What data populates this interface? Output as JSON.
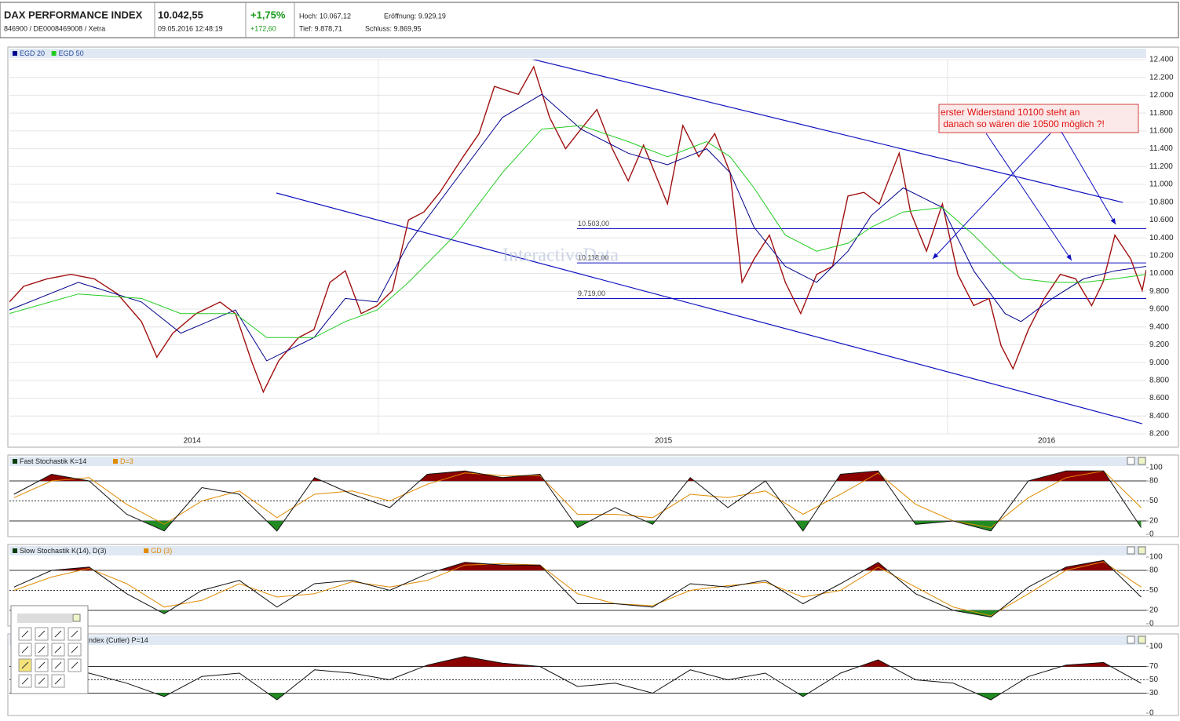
{
  "header": {
    "name": "DAX PERFORMANCE INDEX",
    "ids": "846900 / DE0008469008 / Xetra",
    "last": "10.042,55",
    "time": "09.05.2016 12:48:19",
    "change_pct": "+1,75%",
    "change_abs": "+172,60",
    "high": "Hoch: 10.067,12",
    "open": "Eröffnung: 9.929,19",
    "low": "Tief: 9.878,71",
    "close": "Schluss: 9.869,95"
  },
  "chart_data": [
    {
      "type": "line",
      "watermark": "InteractiveData",
      "annotation": [
        "erster Widerstand 10100 steht an",
        " danach so wären die 10500 möglich ?!"
      ],
      "xlim": [
        2014.352,
        2016.349
      ],
      "xticks": [
        {
          "value": 2014.673,
          "label": "2014"
        },
        {
          "value": 2015.501,
          "label": "2015"
        },
        {
          "value": 2016.174,
          "label": "2016"
        }
      ],
      "year_breaks": [
        2015,
        2016
      ],
      "ylim": [
        8200,
        12400
      ],
      "yticks": [
        {
          "value": 8200,
          "label": "8.200"
        },
        {
          "value": 8400,
          "label": "8.400"
        },
        {
          "value": 8600,
          "label": "8.600"
        },
        {
          "value": 8800,
          "label": "8.800"
        },
        {
          "value": 9000,
          "label": "9.000"
        },
        {
          "value": 9200,
          "label": "9.200"
        },
        {
          "value": 9400,
          "label": "9.400"
        },
        {
          "value": 9600,
          "label": "9.600"
        },
        {
          "value": 9800,
          "label": "9.800"
        },
        {
          "value": 10000,
          "label": "10.000"
        },
        {
          "value": 10200,
          "label": "10.200"
        },
        {
          "value": 10400,
          "label": "10.400"
        },
        {
          "value": 10600,
          "label": "10.600"
        },
        {
          "value": 10800,
          "label": "10.800"
        },
        {
          "value": 11000,
          "label": "11.000"
        },
        {
          "value": 11200,
          "label": "11.200"
        },
        {
          "value": 11400,
          "label": "11.400"
        },
        {
          "value": 11600,
          "label": "11.600"
        },
        {
          "value": 11800,
          "label": "11.800"
        },
        {
          "value": 12000,
          "label": "12.000"
        },
        {
          "value": 12200,
          "label": "12.200"
        },
        {
          "value": 12400,
          "label": "12.400"
        }
      ],
      "grid": true,
      "hlines": [
        {
          "value": 10503,
          "label": "10.503,00"
        },
        {
          "value": 10118,
          "label": "10.118,00"
        },
        {
          "value": 9719,
          "label": "9.719,00"
        }
      ],
      "trendlines": [
        {
          "x": [
            2015.262,
            2016.308
          ],
          "y": [
            12418,
            10797
          ]
        },
        {
          "x": [
            2014.821,
            2016.342
          ],
          "y": [
            10903,
            8314
          ]
        }
      ],
      "series": [
        {
          "color": "#a01010",
          "x": [
            2014.352,
            2014.377,
            2014.418,
            2014.46,
            2014.501,
            2014.542,
            2014.584,
            2014.611,
            2014.639,
            2014.68,
            2014.722,
            2014.749,
            2014.777,
            2014.798,
            2014.825,
            2014.86,
            2014.887,
            2014.915,
            2014.942,
            2014.97,
            2014.998,
            2015.025,
            2015.053,
            2015.08,
            2015.108,
            2015.149,
            2015.177,
            2015.204,
            2015.246,
            2015.273,
            2015.301,
            2015.329,
            2015.356,
            2015.384,
            2015.411,
            2015.439,
            2015.466,
            2015.508,
            2015.535,
            2015.563,
            2015.591,
            2015.618,
            2015.639,
            2015.66,
            2015.687,
            2015.715,
            2015.742,
            2015.77,
            2015.798,
            2015.825,
            2015.853,
            2015.88,
            2015.915,
            2015.935,
            2015.963,
            2015.991,
            2016.018,
            2016.046,
            2016.073,
            2016.094,
            2016.115,
            2016.142,
            2016.17,
            2016.198,
            2016.225,
            2016.253,
            2016.273,
            2016.294,
            2016.322,
            2016.342,
            2016.349
          ],
          "values": [
            9680,
            9855,
            9940,
            9990,
            9940,
            9770,
            9460,
            9060,
            9330,
            9550,
            9680,
            9550,
            9020,
            8670,
            9020,
            9280,
            9370,
            9900,
            10030,
            9550,
            9640,
            9810,
            10600,
            10690,
            10910,
            11310,
            11570,
            12100,
            12010,
            12320,
            11750,
            11400,
            11620,
            11840,
            11400,
            11040,
            11440,
            10780,
            11660,
            11310,
            11570,
            11130,
            9900,
            10160,
            10430,
            9900,
            9550,
            9990,
            10080,
            10870,
            10910,
            10780,
            11350,
            10690,
            10250,
            10780,
            9990,
            9640,
            9720,
            9190,
            8930,
            9370,
            9720,
            9990,
            9940,
            9640,
            9900,
            10430,
            10160,
            9810,
            10040
          ]
        },
        {
          "name": "EGD 20",
          "color": "#00008b",
          "x": [
            2014.352,
            2014.473,
            2014.584,
            2014.653,
            2014.749,
            2014.804,
            2014.887,
            2014.942,
            2014.998,
            2015.053,
            2015.135,
            2015.218,
            2015.287,
            2015.356,
            2015.439,
            2015.508,
            2015.577,
            2015.618,
            2015.66,
            2015.715,
            2015.77,
            2015.825,
            2015.866,
            2015.922,
            2015.991,
            2016.046,
            2016.101,
            2016.129,
            2016.184,
            2016.239,
            2016.294,
            2016.349
          ],
          "values": [
            9590,
            9900,
            9680,
            9330,
            9590,
            9020,
            9280,
            9720,
            9680,
            10340,
            11040,
            11750,
            12010,
            11620,
            11350,
            11220,
            11400,
            11130,
            10520,
            10080,
            9900,
            10250,
            10650,
            10960,
            10740,
            10030,
            9550,
            9460,
            9720,
            9940,
            10030,
            10080
          ]
        },
        {
          "name": "EGD 50",
          "color": "#22cc22",
          "x": [
            2014.352,
            2014.473,
            2014.584,
            2014.653,
            2014.749,
            2014.804,
            2014.887,
            2014.942,
            2014.998,
            2015.053,
            2015.135,
            2015.218,
            2015.287,
            2015.356,
            2015.439,
            2015.508,
            2015.577,
            2015.618,
            2015.66,
            2015.715,
            2015.77,
            2015.825,
            2015.866,
            2015.922,
            2015.991,
            2016.046,
            2016.101,
            2016.129,
            2016.184,
            2016.239,
            2016.294,
            2016.349
          ],
          "values": [
            9550,
            9770,
            9720,
            9550,
            9550,
            9280,
            9280,
            9460,
            9590,
            9900,
            10430,
            11130,
            11620,
            11660,
            11480,
            11310,
            11480,
            11310,
            10960,
            10430,
            10250,
            10340,
            10520,
            10690,
            10740,
            10430,
            10080,
            9940,
            9900,
            9900,
            9940,
            9990
          ]
        }
      ]
    },
    {
      "type": "oscillator",
      "xlim": [
        2014.352,
        2016.349
      ],
      "ylim": [
        0,
        100
      ],
      "yticks": [
        0,
        20,
        50,
        80,
        100
      ],
      "hlines": [
        20,
        50,
        80
      ],
      "fill_colors": [
        "#8b0000",
        "#228b22"
      ],
      "x": [
        2014.36,
        2014.426,
        2014.492,
        2014.558,
        2014.624,
        2014.69,
        2014.756,
        2014.822,
        2014.888,
        2014.954,
        2015.02,
        2015.086,
        2015.152,
        2015.218,
        2015.284,
        2015.35,
        2015.416,
        2015.482,
        2015.548,
        2015.614,
        2015.68,
        2015.746,
        2015.812,
        2015.878,
        2015.944,
        2016.01,
        2016.076,
        2016.142,
        2016.208,
        2016.274,
        2016.34
      ],
      "series": [
        {
          "name": "Fast Stochastik K=14",
          "color": "#111111",
          "values": [
            60,
            90,
            80,
            30,
            5,
            70,
            60,
            5,
            85,
            60,
            40,
            90,
            95,
            85,
            90,
            10,
            40,
            15,
            85,
            40,
            80,
            5,
            90,
            95,
            15,
            20,
            5,
            80,
            95,
            95,
            10
          ]
        },
        {
          "name": "D=3",
          "color": "#e08a00",
          "values": [
            55,
            80,
            85,
            45,
            15,
            50,
            65,
            25,
            60,
            65,
            50,
            75,
            92,
            88,
            88,
            30,
            30,
            25,
            60,
            55,
            65,
            30,
            60,
            92,
            45,
            20,
            10,
            55,
            85,
            95,
            40
          ]
        }
      ]
    },
    {
      "type": "oscillator",
      "xlim": [
        2014.352,
        2016.349
      ],
      "ylim": [
        0,
        100
      ],
      "yticks": [
        0,
        20,
        50,
        80,
        100
      ],
      "hlines": [
        20,
        50,
        80
      ],
      "fill_colors": [
        "#8b0000",
        "#228b22"
      ],
      "x": [
        2014.36,
        2014.426,
        2014.492,
        2014.558,
        2014.624,
        2014.69,
        2014.756,
        2014.822,
        2014.888,
        2014.954,
        2015.02,
        2015.086,
        2015.152,
        2015.218,
        2015.284,
        2015.35,
        2015.416,
        2015.482,
        2015.548,
        2015.614,
        2015.68,
        2015.746,
        2015.812,
        2015.878,
        2015.944,
        2016.01,
        2016.076,
        2016.142,
        2016.208,
        2016.274,
        2016.34
      ],
      "series": [
        {
          "name": "Slow Stochastik K(14), D(3)",
          "color": "#111111",
          "values": [
            55,
            80,
            85,
            45,
            15,
            50,
            65,
            25,
            60,
            65,
            50,
            75,
            92,
            88,
            88,
            30,
            30,
            25,
            60,
            55,
            65,
            30,
            60,
            92,
            45,
            20,
            10,
            55,
            85,
            95,
            40
          ]
        },
        {
          "name": "GD (3)",
          "color": "#e08a00",
          "values": [
            50,
            70,
            83,
            60,
            25,
            35,
            60,
            40,
            45,
            63,
            55,
            65,
            88,
            90,
            88,
            45,
            30,
            27,
            50,
            57,
            62,
            40,
            50,
            85,
            55,
            25,
            12,
            45,
            80,
            93,
            55
          ]
        }
      ]
    },
    {
      "type": "oscillator",
      "xlim": [
        2014.352,
        2016.349
      ],
      "ylim": [
        0,
        100
      ],
      "yticks": [
        0,
        30,
        50,
        70,
        100
      ],
      "hlines": [
        30,
        50,
        70
      ],
      "fill_colors": [
        "#8b0000",
        "#228b22"
      ],
      "x": [
        2014.36,
        2014.426,
        2014.492,
        2014.558,
        2014.624,
        2014.69,
        2014.756,
        2014.822,
        2014.888,
        2014.954,
        2015.02,
        2015.086,
        2015.152,
        2015.218,
        2015.284,
        2015.35,
        2015.416,
        2015.482,
        2015.548,
        2015.614,
        2015.68,
        2015.746,
        2015.812,
        2015.878,
        2015.944,
        2016.01,
        2016.076,
        2016.142,
        2016.208,
        2016.274,
        2016.34
      ],
      "series": [
        {
          "name": "ndex (Cutler) P=14",
          "color": "#111111",
          "values": [
            50,
            65,
            60,
            45,
            25,
            55,
            60,
            20,
            65,
            60,
            50,
            72,
            85,
            75,
            70,
            40,
            45,
            30,
            65,
            50,
            60,
            25,
            60,
            80,
            50,
            45,
            20,
            55,
            72,
            76,
            45
          ]
        }
      ]
    }
  ]
}
